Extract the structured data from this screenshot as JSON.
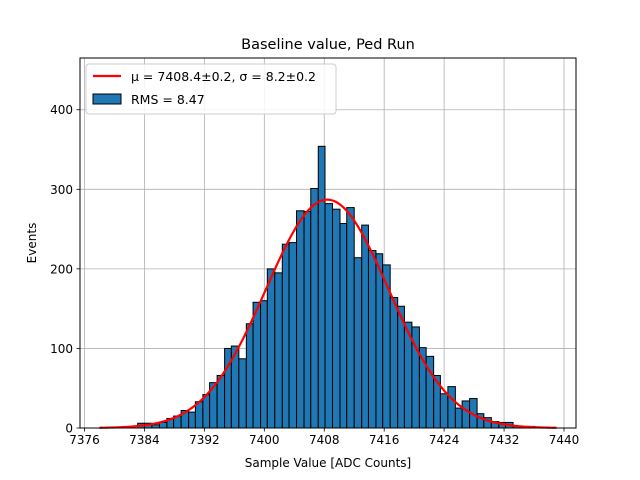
{
  "chart_data": {
    "type": "bar",
    "title": "Baseline value, Ped Run",
    "xlabel": "Sample Value [ADC Counts]",
    "ylabel": "Events",
    "xlim": [
      7375.4,
      7441.6
    ],
    "ylim": [
      0,
      465
    ],
    "xticks": [
      7376,
      7384,
      7392,
      7400,
      7408,
      7416,
      7424,
      7432,
      7440
    ],
    "yticks": [
      0,
      100,
      200,
      300,
      400
    ],
    "grid": true,
    "legend_position": "top-left",
    "histogram": {
      "name": "RMS = 8.47",
      "color": "#1f77b4",
      "edgecolor": "#000000",
      "bins": [
        [
          7383.1,
          6
        ],
        [
          7384.0,
          6
        ],
        [
          7385.0,
          4
        ],
        [
          7386.0,
          7
        ],
        [
          7387.0,
          12
        ],
        [
          7387.9,
          15
        ],
        [
          7388.9,
          22
        ],
        [
          7389.9,
          20
        ],
        [
          7390.8,
          33
        ],
        [
          7391.8,
          42
        ],
        [
          7392.7,
          57
        ],
        [
          7393.7,
          66
        ],
        [
          7394.7,
          100
        ],
        [
          7395.6,
          103
        ],
        [
          7396.6,
          87
        ],
        [
          7397.6,
          131
        ],
        [
          7398.5,
          158
        ],
        [
          7399.5,
          160
        ],
        [
          7400.4,
          200
        ],
        [
          7401.4,
          195
        ],
        [
          7402.4,
          231
        ],
        [
          7403.3,
          233
        ],
        [
          7404.3,
          273
        ],
        [
          7405.3,
          272
        ],
        [
          7406.2,
          301
        ],
        [
          7407.2,
          354
        ],
        [
          7408.1,
          282
        ],
        [
          7409.1,
          275
        ],
        [
          7410.1,
          257
        ],
        [
          7411.0,
          277
        ],
        [
          7412.0,
          214
        ],
        [
          7413.0,
          255
        ],
        [
          7413.9,
          223
        ],
        [
          7414.9,
          219
        ],
        [
          7415.8,
          205
        ],
        [
          7416.8,
          164
        ],
        [
          7417.8,
          153
        ],
        [
          7418.7,
          133
        ],
        [
          7419.7,
          127
        ],
        [
          7420.7,
          101
        ],
        [
          7421.6,
          90
        ],
        [
          7422.6,
          66
        ],
        [
          7423.5,
          43
        ],
        [
          7424.5,
          52
        ],
        [
          7425.5,
          25
        ],
        [
          7426.4,
          34
        ],
        [
          7427.4,
          37
        ],
        [
          7428.4,
          18
        ],
        [
          7429.3,
          13
        ],
        [
          7430.3,
          8
        ],
        [
          7431.3,
          7
        ],
        [
          7432.2,
          7
        ],
        [
          7433.2,
          2
        ],
        [
          7434.1,
          1
        ],
        [
          7435.1,
          2
        ],
        [
          7436.1,
          1
        ]
      ]
    },
    "fit": {
      "name": "μ = 7408.4±0.2, σ = 8.2±0.2",
      "color": "#ff0000",
      "mu": 7408.4,
      "sigma": 8.2,
      "amplitude": 287,
      "x_range": [
        7378,
        7439
      ]
    }
  }
}
